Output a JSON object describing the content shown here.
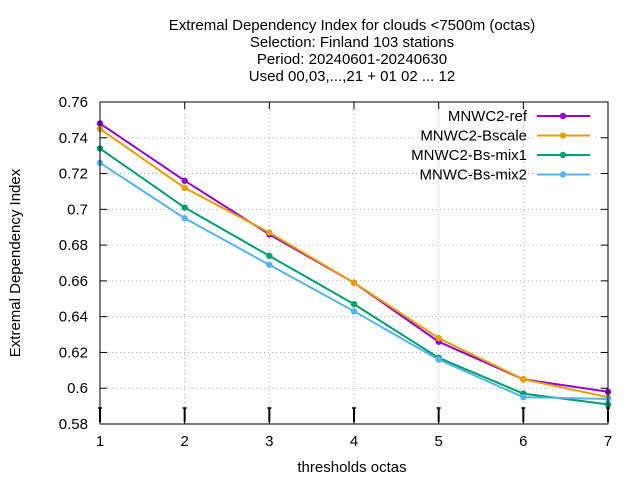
{
  "chart_data": {
    "type": "line",
    "title_lines": [
      "Extremal Dependency Index  for clouds <7500m (octas)",
      "Selection: Finland    103 stations",
      "Period: 20240601-20240630",
      "Used 00,03,...,21 + 01 02 ... 12"
    ],
    "xlabel": "thresholds octas",
    "ylabel": "Extremal Dependency Index",
    "x": [
      1,
      2,
      3,
      4,
      5,
      6,
      7
    ],
    "xlim": [
      1,
      7
    ],
    "ylim": [
      0.58,
      0.76
    ],
    "yticks": [
      0.58,
      0.6,
      0.62,
      0.64,
      0.66,
      0.68,
      0.7,
      0.72,
      0.74,
      0.76
    ],
    "ytick_labels": [
      "0.58",
      "0.6",
      "0.62",
      "0.64",
      "0.66",
      "0.68",
      "0.7",
      "0.72",
      "0.74",
      "0.76"
    ],
    "xtick_labels": [
      "1",
      "2",
      "3",
      "4",
      "5",
      "6",
      "7"
    ],
    "grid": true,
    "legend_position": "top-right",
    "series": [
      {
        "name": "MNWC2-ref",
        "color": "#9400d3",
        "values": [
          0.748,
          0.716,
          0.686,
          0.659,
          0.626,
          0.605,
          0.598
        ]
      },
      {
        "name": "MNWC2-Bscale",
        "color": "#e69f00",
        "values": [
          0.745,
          0.712,
          0.687,
          0.659,
          0.628,
          0.605,
          0.595
        ]
      },
      {
        "name": "MNWC2-Bs-mix1",
        "color": "#009e73",
        "values": [
          0.734,
          0.701,
          0.674,
          0.647,
          0.617,
          0.597,
          0.591
        ]
      },
      {
        "name": "MNWC-Bs-mix2",
        "color": "#56b4e9",
        "values": [
          0.726,
          0.695,
          0.669,
          0.643,
          0.616,
          0.595,
          0.594
        ]
      }
    ]
  }
}
